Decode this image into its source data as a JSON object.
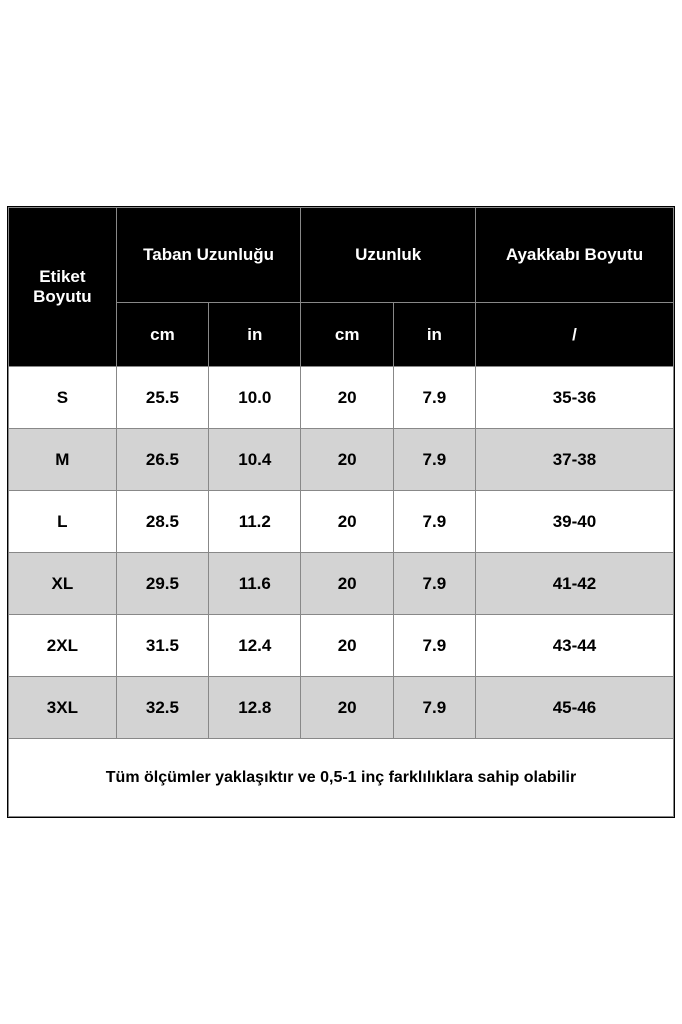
{
  "table": {
    "headers": {
      "etiket": "Etiket\nBoyutu",
      "taban": "Taban Uzunluğu",
      "uzunluk": "Uzunluk",
      "ayakkabi": "Ayakkabı Boyutu",
      "cm": "cm",
      "in": "in",
      "slash": "/"
    },
    "rows": [
      {
        "size": "S",
        "taban_cm": "25.5",
        "taban_in": "10.0",
        "uzun_cm": "20",
        "uzun_in": "7.9",
        "ayakkabi": "35-36"
      },
      {
        "size": "M",
        "taban_cm": "26.5",
        "taban_in": "10.4",
        "uzun_cm": "20",
        "uzun_in": "7.9",
        "ayakkabi": "37-38"
      },
      {
        "size": "L",
        "taban_cm": "28.5",
        "taban_in": "11.2",
        "uzun_cm": "20",
        "uzun_in": "7.9",
        "ayakkabi": "39-40"
      },
      {
        "size": "XL",
        "taban_cm": "29.5",
        "taban_in": "11.6",
        "uzun_cm": "20",
        "uzun_in": "7.9",
        "ayakkabi": "41-42"
      },
      {
        "size": "2XL",
        "taban_cm": "31.5",
        "taban_in": "12.4",
        "uzun_cm": "20",
        "uzun_in": "7.9",
        "ayakkabi": "43-44"
      },
      {
        "size": "3XL",
        "taban_cm": "32.5",
        "taban_in": "12.8",
        "uzun_cm": "20",
        "uzun_in": "7.9",
        "ayakkabi": "45-46"
      }
    ],
    "footer": "Tüm ölçümler yaklaşıktır ve 0,5-1 inç farklılıklara sahip olabilir",
    "colors": {
      "header_bg": "#000000",
      "header_text": "#ffffff",
      "row_even_bg": "#ffffff",
      "row_odd_bg": "#d3d3d3",
      "text": "#000000",
      "border": "#888888"
    },
    "font_sizes": {
      "header": 17,
      "body": 17,
      "footer": 16
    }
  }
}
